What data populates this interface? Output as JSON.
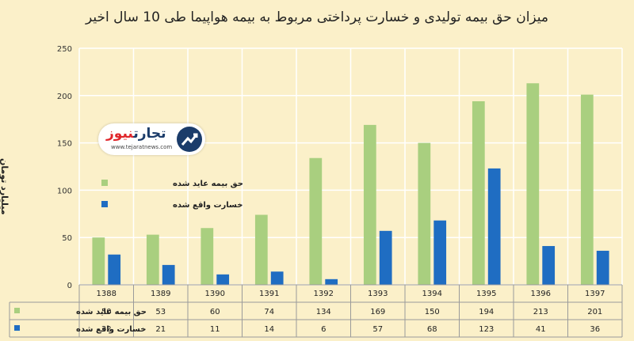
{
  "chart_data": {
    "type": "bar",
    "title": "میزان حق بیمه تولیدی و خسارت پرداختی مربوط به بیمه هواپیما طی 10 سال اخیر",
    "ylabel": "میلیارد تومان",
    "ylim": [
      0,
      250
    ],
    "yticks": [
      0,
      50,
      100,
      150,
      200,
      250
    ],
    "categories": [
      "1388",
      "1389",
      "1390",
      "1391",
      "1392",
      "1393",
      "1394",
      "1395",
      "1396",
      "1397"
    ],
    "series": [
      {
        "name": "حق بیمه عاید شده",
        "color": "#a9cf7f",
        "values": [
          50,
          53,
          60,
          74,
          134,
          169,
          150,
          194,
          213,
          201
        ]
      },
      {
        "name": "خسارت واقع شده",
        "color": "#1f6dc2",
        "values": [
          32,
          21,
          11,
          14,
          6,
          57,
          68,
          123,
          41,
          36
        ]
      }
    ],
    "grid": true,
    "legend": "left",
    "table": true
  },
  "logo": {
    "name_main": "تجارت",
    "name_accent": "نیوز",
    "url": "www.tejaratnews.com"
  }
}
